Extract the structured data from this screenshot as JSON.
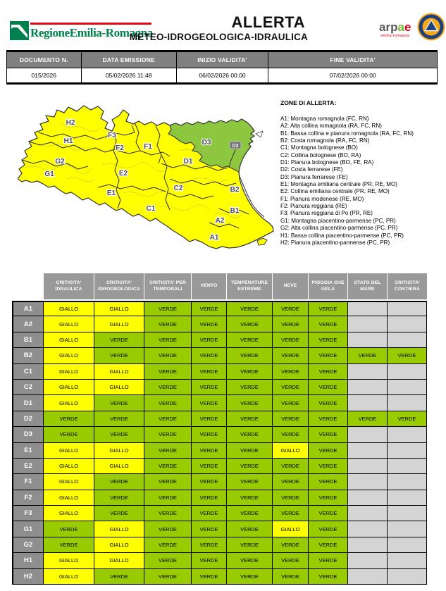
{
  "header": {
    "region_logo_text": "RegioneEmilia-Romagna",
    "title_line1": "ALLERTA",
    "title_line2": "METEO-IDROGEOLOGICA-IDRAULICA",
    "arpae_logo": {
      "part1": "arp",
      "part2": "a",
      "part3": "e",
      "subtitle": "emilia-romagna"
    },
    "protezione_civile_logo": "protezione-civile-emblem"
  },
  "doc_table": {
    "headers": [
      "DOCUMENTO N.",
      "DATA EMISSIONE",
      "INIZIO VALIDITA'",
      "FINE VALIDITA'"
    ],
    "values": [
      "015/2026",
      "05/02/2026 11:48",
      "06/02/2026 00:00",
      "07/02/2026 00:00"
    ]
  },
  "map": {
    "zone_labels": [
      "H2",
      "H1",
      "G2",
      "G1",
      "F3",
      "F2",
      "F1",
      "E2",
      "E1",
      "D3",
      "D2",
      "D1",
      "C2",
      "C1",
      "B2",
      "B1",
      "A2",
      "A1"
    ],
    "green_zones": [
      "D3",
      "D2"
    ],
    "yellow_zones": [
      "A1",
      "A2",
      "B1",
      "B2",
      "C1",
      "C2",
      "D1",
      "E1",
      "E2",
      "F1",
      "F2",
      "F3",
      "G1",
      "G2",
      "H1",
      "H2"
    ]
  },
  "legend": {
    "title": "ZONE DI ALLERTA:",
    "items": [
      "A1: Montagna romagnola (FC, RN)",
      "A2: Alta collina romagnola (RA, FC, RN)",
      "B1: Bassa collina e pianura romagnola (RA, FC, RN)",
      "B2: Costa romagnola (RA, FC, RN)",
      "C1: Montagna bolognese (BO)",
      "C2: Collina bolognese (BO, RA)",
      "D1: Pianura bolognese (BO, FE, RA)",
      "D2: Costa ferrarese (FE)",
      "D3: Pianura ferrarese (FE)",
      "E1: Montagna emiliana centrale (PR, RE, MO)",
      "E2: Collina emiliana centrale (PR, RE, MO)",
      "F1: Pianura modenese (RE, MO)",
      "F2: Pianura reggiana (RE)",
      "F3: Pianura reggiana di Po (PR, RE)",
      "G1: Montagna piacentino-parmense (PC, PR)",
      "G2: Alta collina piacentino-parmense (PC, PR)",
      "H1: Bassa collina piacentino-parmense (PC, PR)",
      "H2: Pianura piacentino-parmense (PC, PR)"
    ]
  },
  "alert_table": {
    "columns": [
      "CRITICITA' IDRAULICA",
      "CRITICITA' IDROGEOLOGICA",
      "CRITICITA' PER TEMPORALI",
      "VENTO",
      "TEMPERATURE ESTREME",
      "NEVE",
      "PIOGGIA CHE GELA",
      "STATO DEL MARE",
      "CRITICITA' COSTIERA"
    ],
    "rows": [
      {
        "zone": "A1",
        "values": [
          "GIALLO",
          "GIALLO",
          "VERDE",
          "VERDE",
          "VERDE",
          "VERDE",
          "VERDE",
          "",
          ""
        ]
      },
      {
        "zone": "A2",
        "values": [
          "GIALLO",
          "GIALLO",
          "VERDE",
          "VERDE",
          "VERDE",
          "VERDE",
          "VERDE",
          "",
          ""
        ]
      },
      {
        "zone": "B1",
        "values": [
          "GIALLO",
          "VERDE",
          "VERDE",
          "VERDE",
          "VERDE",
          "VERDE",
          "VERDE",
          "",
          ""
        ]
      },
      {
        "zone": "B2",
        "values": [
          "GIALLO",
          "VERDE",
          "VERDE",
          "VERDE",
          "VERDE",
          "VERDE",
          "VERDE",
          "VERDE",
          "VERDE"
        ]
      },
      {
        "zone": "C1",
        "values": [
          "GIALLO",
          "GIALLO",
          "VERDE",
          "VERDE",
          "VERDE",
          "VERDE",
          "VERDE",
          "",
          ""
        ]
      },
      {
        "zone": "C2",
        "values": [
          "GIALLO",
          "GIALLO",
          "VERDE",
          "VERDE",
          "VERDE",
          "VERDE",
          "VERDE",
          "",
          ""
        ]
      },
      {
        "zone": "D1",
        "values": [
          "GIALLO",
          "VERDE",
          "VERDE",
          "VERDE",
          "VERDE",
          "VERDE",
          "VERDE",
          "",
          ""
        ]
      },
      {
        "zone": "D2",
        "values": [
          "VERDE",
          "VERDE",
          "VERDE",
          "VERDE",
          "VERDE",
          "VERDE",
          "VERDE",
          "VERDE",
          "VERDE"
        ]
      },
      {
        "zone": "D3",
        "values": [
          "VERDE",
          "VERDE",
          "VERDE",
          "VERDE",
          "VERDE",
          "VERDE",
          "VERDE",
          "",
          ""
        ]
      },
      {
        "zone": "E1",
        "values": [
          "GIALLO",
          "GIALLO",
          "VERDE",
          "VERDE",
          "VERDE",
          "GIALLO",
          "VERDE",
          "",
          ""
        ]
      },
      {
        "zone": "E2",
        "values": [
          "GIALLO",
          "GIALLO",
          "VERDE",
          "VERDE",
          "VERDE",
          "VERDE",
          "VERDE",
          "",
          ""
        ]
      },
      {
        "zone": "F1",
        "values": [
          "GIALLO",
          "VERDE",
          "VERDE",
          "VERDE",
          "VERDE",
          "VERDE",
          "VERDE",
          "",
          ""
        ]
      },
      {
        "zone": "F2",
        "values": [
          "GIALLO",
          "VERDE",
          "VERDE",
          "VERDE",
          "VERDE",
          "VERDE",
          "VERDE",
          "",
          ""
        ]
      },
      {
        "zone": "F3",
        "values": [
          "GIALLO",
          "VERDE",
          "VERDE",
          "VERDE",
          "VERDE",
          "VERDE",
          "VERDE",
          "",
          ""
        ]
      },
      {
        "zone": "G1",
        "values": [
          "VERDE",
          "GIALLO",
          "VERDE",
          "VERDE",
          "VERDE",
          "GIALLO",
          "VERDE",
          "",
          ""
        ]
      },
      {
        "zone": "G2",
        "values": [
          "VERDE",
          "GIALLO",
          "VERDE",
          "VERDE",
          "VERDE",
          "VERDE",
          "VERDE",
          "",
          ""
        ]
      },
      {
        "zone": "H1",
        "values": [
          "GIALLO",
          "GIALLO",
          "VERDE",
          "VERDE",
          "VERDE",
          "VERDE",
          "VERDE",
          "",
          ""
        ]
      },
      {
        "zone": "H2",
        "values": [
          "GIALLO",
          "VERDE",
          "VERDE",
          "VERDE",
          "VERDE",
          "VERDE",
          "VERDE",
          "",
          ""
        ]
      }
    ]
  },
  "colors": {
    "giallo": "#FFFF00",
    "verde": "#99CC00",
    "empty_gray": "#D4D4D4",
    "header_gray": "#999999",
    "label_gray": "#8E8E8E",
    "doc_header_gray": "#808080",
    "map_giallo": "#FFFF00",
    "map_verde": "#8DC63F",
    "region_green": "#00804D",
    "accent_red": "#E30613",
    "arpae_gray": "#58585A",
    "arpae_green": "#76B82A",
    "arpae_red": "#E2001A",
    "pc_navy": "#1E3F7D",
    "pc_amber": "#F5A81C"
  }
}
